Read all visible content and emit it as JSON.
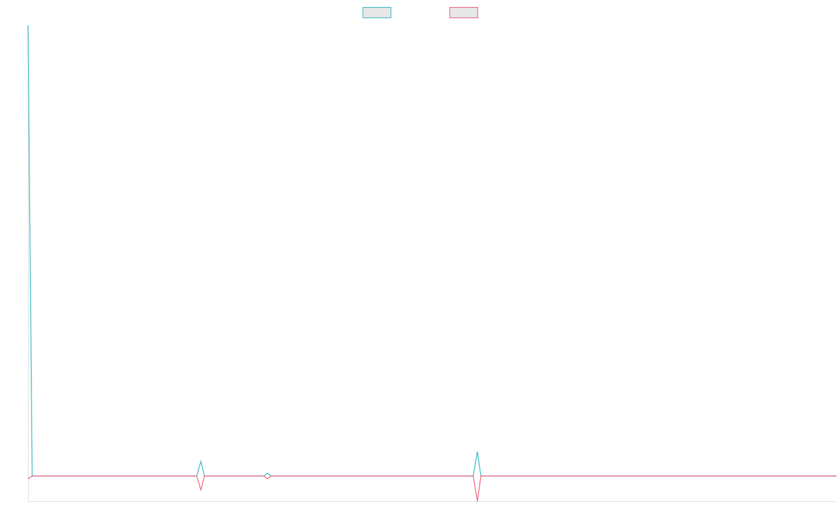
{
  "chart_data": {
    "type": "line",
    "x": [
      0,
      6,
      241,
      247,
      252,
      337,
      342,
      347,
      636,
      642,
      647,
      1155
    ],
    "series": [
      {
        "color": "#3bbac4",
        "values": [
          644,
          0,
          0,
          21,
          0,
          0,
          4,
          0,
          0,
          35,
          0,
          0
        ]
      },
      {
        "color": "#f2647f",
        "values": [
          -4,
          0,
          0,
          -20,
          0,
          0,
          -4,
          0,
          0,
          -36,
          0,
          0
        ]
      }
    ],
    "xlim": [
      0,
      1155
    ],
    "ylim": [
      -36,
      644
    ],
    "grid": false,
    "legend": "top"
  }
}
